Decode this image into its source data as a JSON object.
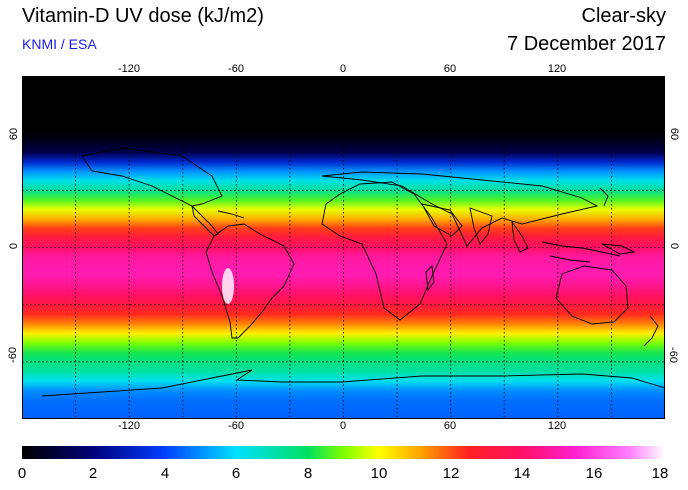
{
  "header": {
    "title": "Vitamin-D UV dose (kJ/m2)",
    "source": "KNMI / ESA",
    "mode": "Clear-sky",
    "date": "7 December 2017"
  },
  "map": {
    "lon_ticks": [
      "-120",
      "-60",
      "0",
      "60",
      "120"
    ],
    "lat_ticks_left": [
      "60",
      "0",
      "-60"
    ],
    "lat_ticks_right": [
      "60",
      "0",
      "-60"
    ],
    "lon_tick_values": [
      -120,
      -60,
      0,
      60,
      120
    ],
    "lat_tick_values": [
      60,
      0,
      -60
    ],
    "lon_range": [
      -180,
      180
    ],
    "lat_range": [
      -90,
      90
    ],
    "grid": true,
    "grid_step_lon": 30,
    "grid_step_lat": 30,
    "field_by_latitude": [
      {
        "lat": 90,
        "dose": 0
      },
      {
        "lat": 60,
        "dose": 0
      },
      {
        "lat": 50,
        "dose": 1.2
      },
      {
        "lat": 45,
        "dose": 3.2
      },
      {
        "lat": 40,
        "dose": 5
      },
      {
        "lat": 35,
        "dose": 6.3
      },
      {
        "lat": 30,
        "dose": 7.3
      },
      {
        "lat": 25,
        "dose": 8.6
      },
      {
        "lat": 20,
        "dose": 9.8
      },
      {
        "lat": 15,
        "dose": 11
      },
      {
        "lat": 10,
        "dose": 12.2
      },
      {
        "lat": 5,
        "dose": 13.2
      },
      {
        "lat": 0,
        "dose": 14
      },
      {
        "lat": -5,
        "dose": 14.8
      },
      {
        "lat": -10,
        "dose": 15
      },
      {
        "lat": -15,
        "dose": 15
      },
      {
        "lat": -20,
        "dose": 14.6
      },
      {
        "lat": -25,
        "dose": 14
      },
      {
        "lat": -30,
        "dose": 13.2
      },
      {
        "lat": -35,
        "dose": 12.4
      },
      {
        "lat": -40,
        "dose": 11.5
      },
      {
        "lat": -45,
        "dose": 10.2
      },
      {
        "lat": -50,
        "dose": 9
      },
      {
        "lat": -55,
        "dose": 8.2
      },
      {
        "lat": -60,
        "dose": 7.6
      },
      {
        "lat": -65,
        "dose": 7.2
      },
      {
        "lat": -70,
        "dose": 6.2
      },
      {
        "lat": -75,
        "dose": 5
      },
      {
        "lat": -80,
        "dose": 4.6
      },
      {
        "lat": -90,
        "dose": 4.4
      }
    ]
  },
  "colorbar": {
    "min": 0,
    "max": 18,
    "labels": [
      "0",
      "2",
      "4",
      "6",
      "8",
      "10",
      "12",
      "14",
      "16",
      "18"
    ],
    "stops": [
      {
        "v": 0,
        "color": "#000000"
      },
      {
        "v": 2,
        "color": "#00007a"
      },
      {
        "v": 4,
        "color": "#0040ff"
      },
      {
        "v": 6,
        "color": "#00e0ff"
      },
      {
        "v": 8,
        "color": "#00e060"
      },
      {
        "v": 9,
        "color": "#80ff00"
      },
      {
        "v": 10,
        "color": "#ffff00"
      },
      {
        "v": 11.2,
        "color": "#ffa000"
      },
      {
        "v": 12.5,
        "color": "#ff2020"
      },
      {
        "v": 14,
        "color": "#ff1066"
      },
      {
        "v": 15.5,
        "color": "#ff20d0"
      },
      {
        "v": 17,
        "color": "#ff80ff"
      },
      {
        "v": 18,
        "color": "#ffffff"
      }
    ]
  }
}
